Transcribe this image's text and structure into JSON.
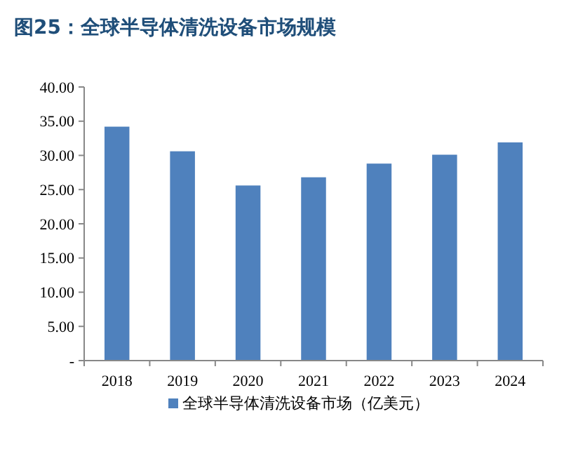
{
  "chart_data": {
    "type": "bar",
    "title": "图25：全球半导体清洗设备市场规模",
    "categories": [
      "2018",
      "2019",
      "2020",
      "2021",
      "2022",
      "2023",
      "2024"
    ],
    "series": [
      {
        "name": "全球半导体清洗设备市场（亿美元）",
        "color": "#4f81bd",
        "values": [
          34.2,
          30.6,
          25.6,
          26.8,
          28.8,
          30.1,
          31.9
        ]
      }
    ],
    "ylim": [
      0,
      40
    ],
    "yticks": [
      {
        "value": 0,
        "label": "-"
      },
      {
        "value": 5,
        "label": "5.00"
      },
      {
        "value": 10,
        "label": "10.00"
      },
      {
        "value": 15,
        "label": "15.00"
      },
      {
        "value": 20,
        "label": "20.00"
      },
      {
        "value": 25,
        "label": "25.00"
      },
      {
        "value": 30,
        "label": "30.00"
      },
      {
        "value": 35,
        "label": "35.00"
      },
      {
        "value": 40,
        "label": "40.00"
      }
    ],
    "legend": "bottom",
    "grid": false
  }
}
